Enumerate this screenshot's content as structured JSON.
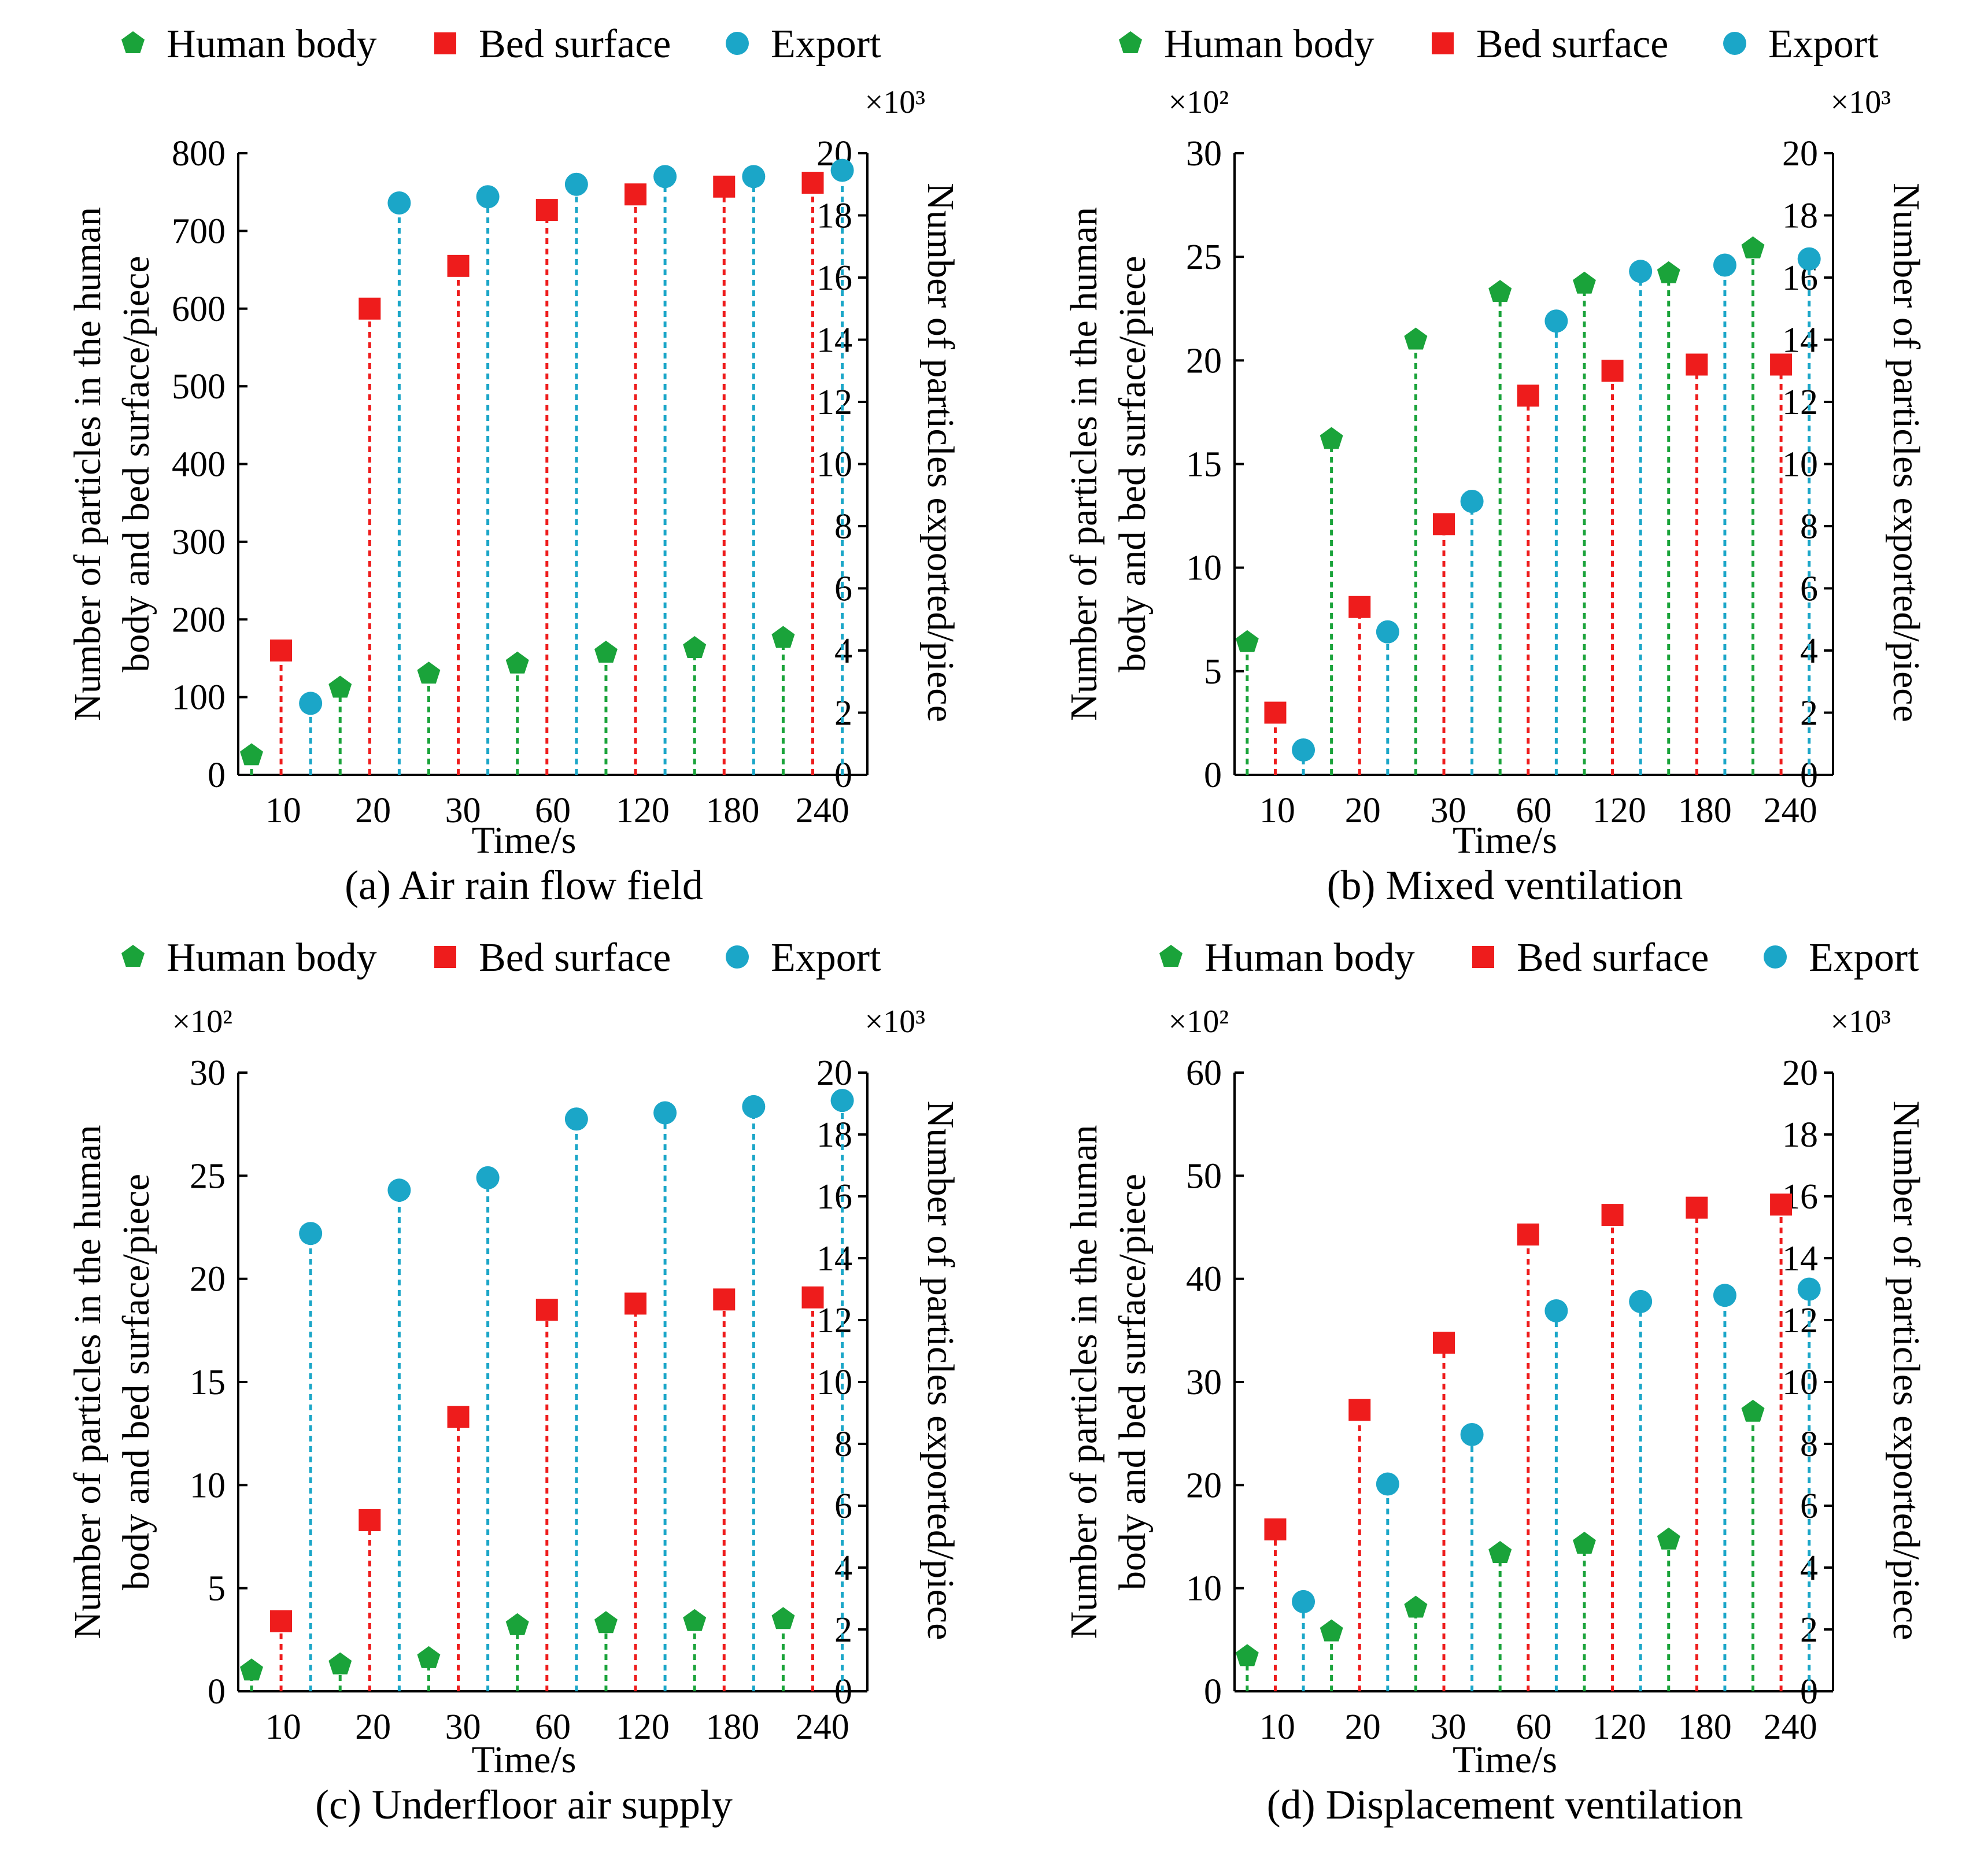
{
  "colors": {
    "human_body": "#1aa33a",
    "bed_surface": "#ee1c1c",
    "export": "#1ba6c8",
    "axis": "#000000"
  },
  "legend": {
    "human_body": "Human body",
    "bed_surface": "Bed surface",
    "export": "Export",
    "human_body_icon": "pentagon-marker",
    "bed_surface_icon": "square-marker",
    "export_icon": "circle-marker"
  },
  "chart_data": [
    {
      "type": "stem",
      "caption": "(a) Air rain flow field",
      "xlabel": "Time/s",
      "ylabel_left": [
        "Number of particles in the human",
        "body and bed surface/piece"
      ],
      "ylabel_right": "Number of particles exported/piece",
      "left_multiplier": "",
      "right_multiplier": "×10³",
      "categories": [
        "10",
        "20",
        "30",
        "60",
        "120",
        "180",
        "240"
      ],
      "ylim_left": [
        0,
        800
      ],
      "yticks_left": [
        0,
        100,
        200,
        300,
        400,
        500,
        600,
        700,
        800
      ],
      "ylim_right": [
        0,
        20
      ],
      "yticks_right": [
        0,
        2,
        4,
        6,
        8,
        10,
        12,
        14,
        16,
        18,
        20
      ],
      "series": [
        {
          "name": "Human body",
          "axis": "left",
          "values": [
            25,
            112,
            130,
            143,
            157,
            163,
            176
          ]
        },
        {
          "name": "Bed surface",
          "axis": "left",
          "values": [
            160,
            600,
            655,
            727,
            747,
            757,
            762
          ]
        },
        {
          "name": "Export",
          "axis": "right",
          "values": [
            2.3,
            18.4,
            18.6,
            19.0,
            19.25,
            19.25,
            19.45
          ]
        }
      ]
    },
    {
      "type": "stem",
      "caption": "(b) Mixed ventilation",
      "xlabel": "Time/s",
      "ylabel_left": [
        "Number of particles in the human",
        "body and bed surface/piece"
      ],
      "ylabel_right": "Number of particles exported/piece",
      "left_multiplier": "×10²",
      "right_multiplier": "×10³",
      "categories": [
        "10",
        "20",
        "30",
        "60",
        "120",
        "180",
        "240"
      ],
      "ylim_left": [
        0,
        30
      ],
      "yticks_left": [
        0,
        5,
        10,
        15,
        20,
        25,
        30
      ],
      "ylim_right": [
        0,
        20
      ],
      "yticks_right": [
        0,
        2,
        4,
        6,
        8,
        10,
        12,
        14,
        16,
        18,
        20
      ],
      "series": [
        {
          "name": "Human body",
          "axis": "left",
          "values": [
            6.4,
            16.2,
            21.0,
            23.3,
            23.7,
            24.2,
            25.4
          ]
        },
        {
          "name": "Bed surface",
          "axis": "left",
          "values": [
            3.0,
            8.1,
            12.1,
            18.3,
            19.5,
            19.8,
            19.8
          ]
        },
        {
          "name": "Export",
          "axis": "right",
          "values": [
            0.8,
            4.6,
            8.8,
            14.6,
            16.2,
            16.4,
            16.6
          ]
        }
      ]
    },
    {
      "type": "stem",
      "caption": "(c) Underfloor air supply",
      "xlabel": "Time/s",
      "ylabel_left": [
        "Number of particles in the human",
        "body and bed surface/piece"
      ],
      "ylabel_right": "Number of particles exported/piece",
      "left_multiplier": "×10²",
      "right_multiplier": "×10³",
      "categories": [
        "10",
        "20",
        "30",
        "60",
        "120",
        "180",
        "240"
      ],
      "ylim_left": [
        0,
        30
      ],
      "yticks_left": [
        0,
        5,
        10,
        15,
        20,
        25,
        30
      ],
      "ylim_right": [
        0,
        20
      ],
      "yticks_right": [
        0,
        2,
        4,
        6,
        8,
        10,
        12,
        14,
        16,
        18,
        20
      ],
      "series": [
        {
          "name": "Human body",
          "axis": "left",
          "values": [
            1.0,
            1.3,
            1.6,
            3.2,
            3.3,
            3.4,
            3.5
          ]
        },
        {
          "name": "Bed surface",
          "axis": "left",
          "values": [
            3.4,
            8.3,
            13.3,
            18.5,
            18.8,
            19.0,
            19.1
          ]
        },
        {
          "name": "Export",
          "axis": "right",
          "values": [
            14.8,
            16.2,
            16.6,
            18.5,
            18.7,
            18.9,
            19.1
          ]
        }
      ]
    },
    {
      "type": "stem",
      "caption": "(d) Displacement ventilation",
      "xlabel": "Time/s",
      "ylabel_left": [
        "Number of particles in the human",
        "body and bed surface/piece"
      ],
      "ylabel_right": "Number of particles exported/piece",
      "left_multiplier": "×10²",
      "right_multiplier": "×10³",
      "categories": [
        "10",
        "20",
        "30",
        "60",
        "120",
        "180",
        "240"
      ],
      "ylim_left": [
        0,
        60
      ],
      "yticks_left": [
        0,
        10,
        20,
        30,
        40,
        50,
        60
      ],
      "ylim_right": [
        0,
        20
      ],
      "yticks_right": [
        0,
        2,
        4,
        6,
        8,
        10,
        12,
        14,
        16,
        18,
        20
      ],
      "series": [
        {
          "name": "Human body",
          "axis": "left",
          "values": [
            3.4,
            5.8,
            8.1,
            13.4,
            14.3,
            14.7,
            27.1
          ]
        },
        {
          "name": "Bed surface",
          "axis": "left",
          "values": [
            15.7,
            27.3,
            33.8,
            44.3,
            46.2,
            46.9,
            47.2
          ]
        },
        {
          "name": "Export",
          "axis": "right",
          "values": [
            2.9,
            6.7,
            8.3,
            12.3,
            12.6,
            12.8,
            13.0
          ]
        }
      ]
    }
  ]
}
